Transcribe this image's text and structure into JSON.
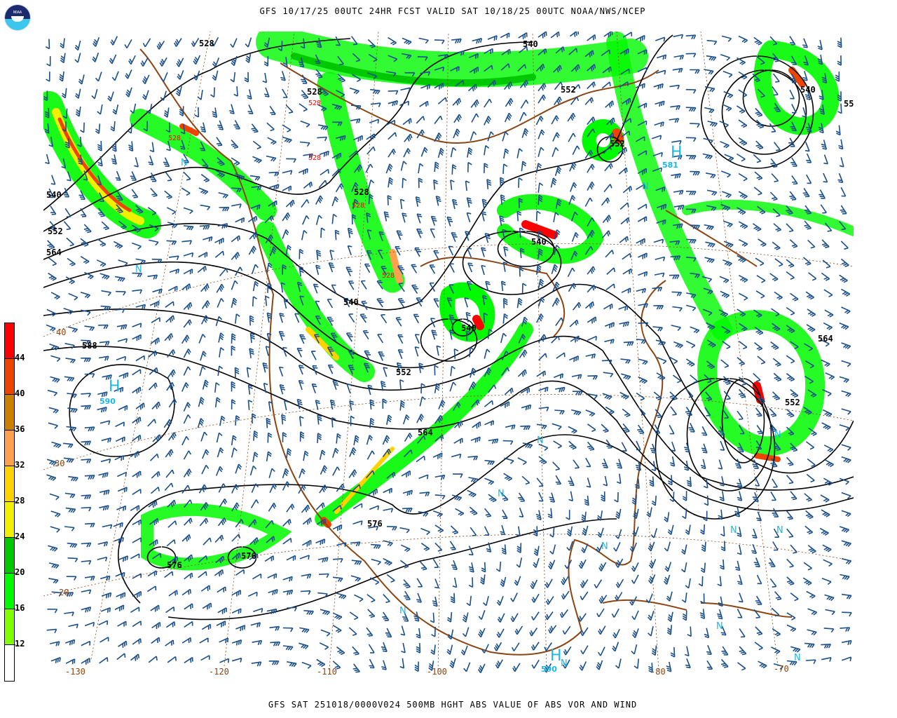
{
  "header": {
    "title": "GFS 10/17/25 00UTC 24HR FCST VALID SAT 10/18/25 00UTC NOAA/NWS/NCEP",
    "logo_text": "NOAA"
  },
  "footer": {
    "caption": "GFS SAT 251018/0000V024 500MB HGHT ABS VALUE OF ABS VOR AND WIND"
  },
  "colorbar": {
    "levels": [
      "44",
      "40",
      "36",
      "32",
      "28",
      "24",
      "20",
      "16",
      "12"
    ],
    "colors": [
      "#ff0000",
      "#ee4400",
      "#cc8000",
      "#ffa050",
      "#ffd200",
      "#f0f000",
      "#00c800",
      "#00fa00",
      "#80ff00",
      "#ffffff"
    ]
  },
  "colors": {
    "contour": "#000000",
    "coast": "#8b4513",
    "barb": "#1a4f8a",
    "high_marker": "#19b8e6",
    "low_value": "#ff0000"
  },
  "contour_labels": [
    "528",
    "528",
    "540",
    "552",
    "540",
    "552",
    "564",
    "528",
    "540",
    "540",
    "540",
    "552",
    "564",
    "576",
    "588",
    "576",
    "576",
    "552",
    "564",
    "55"
  ],
  "low_values": [
    "528",
    "528",
    "528",
    "528",
    "528"
  ],
  "highs": [
    {
      "symbol": "H",
      "value": "581"
    },
    {
      "symbol": "H",
      "value": "590"
    },
    {
      "symbol": "H",
      "value": "590"
    }
  ],
  "markers": {
    "n": "N"
  },
  "longitude_labels": [
    "-130",
    "-120",
    "-110",
    "-100",
    "-90",
    "-80",
    "-70"
  ],
  "latitude_labels": [
    "40",
    "30",
    "20"
  ]
}
